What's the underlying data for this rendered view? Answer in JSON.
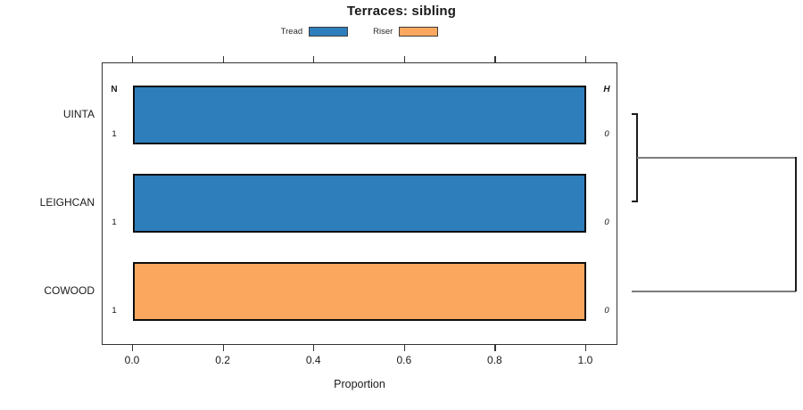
{
  "title": "Terraces: sibling",
  "legend": {
    "items": [
      {
        "label": "Tread",
        "color": "#2e7ebc"
      },
      {
        "label": "Riser",
        "color": "#fba85e"
      }
    ]
  },
  "table": {
    "left_header": "N",
    "right_header": "H"
  },
  "rows": [
    {
      "label": "UINTA",
      "n": "1",
      "h": "0",
      "segments": [
        {
          "series": "Tread",
          "value": 1.0
        }
      ]
    },
    {
      "label": "LEIGHCAN",
      "n": "1",
      "h": "0",
      "segments": [
        {
          "series": "Tread",
          "value": 1.0
        }
      ]
    },
    {
      "label": "COWOOD",
      "n": "1",
      "h": "0",
      "segments": [
        {
          "series": "Riser",
          "value": 1.0
        }
      ]
    }
  ],
  "x_axis": {
    "label": "Proportion",
    "ticks": [
      "0.0",
      "0.2",
      "0.4",
      "0.6",
      "0.8",
      "1.0"
    ]
  },
  "chart_data": {
    "type": "bar",
    "orientation": "horizontal",
    "stacked": true,
    "title": "Terraces: sibling",
    "categories": [
      "UINTA",
      "LEIGHCAN",
      "COWOOD"
    ],
    "series": [
      {
        "name": "Tread",
        "color": "#2e7ebc",
        "values": [
          1.0,
          1.0,
          0.0
        ]
      },
      {
        "name": "Riser",
        "color": "#fba85e",
        "values": [
          0.0,
          0.0,
          1.0
        ]
      }
    ],
    "row_annotations": {
      "N": [
        1,
        1,
        1
      ],
      "H": [
        0,
        0,
        0
      ]
    },
    "xlabel": "Proportion",
    "xlim": [
      0,
      1
    ],
    "xticks": [
      0.0,
      0.2,
      0.4,
      0.6,
      0.8,
      1.0
    ],
    "grid": false,
    "legend_position": "top-center",
    "dendrogram": {
      "position": "right",
      "leaves": [
        "UINTA",
        "LEIGHCAN",
        "COWOOD"
      ],
      "merges": [
        {
          "members": [
            "UINTA",
            "LEIGHCAN"
          ],
          "relative_height": 0.03
        },
        {
          "members": [
            "UINTA+LEIGHCAN",
            "COWOOD"
          ],
          "relative_height": 1.0
        }
      ]
    }
  }
}
